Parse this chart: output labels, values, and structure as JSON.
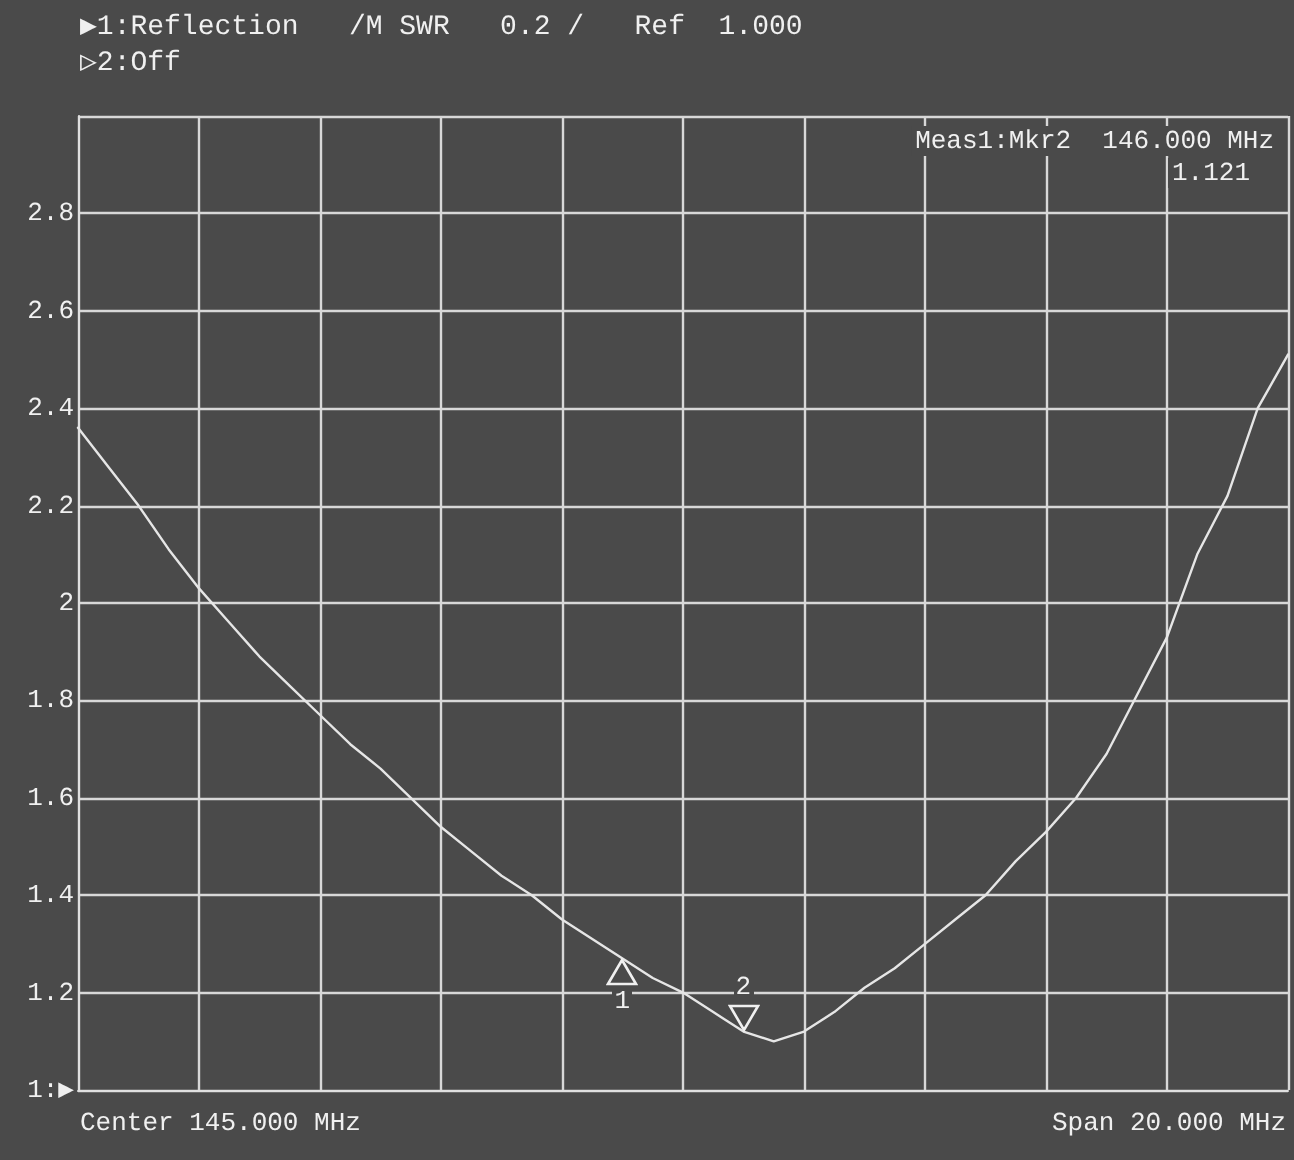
{
  "chart_data": {
    "type": "line",
    "title": "▶1:Reflection   /M SWR   0.2 /   Ref  1.000",
    "subtitle": "▷2:Off",
    "categories": [
      null,
      null,
      null,
      null,
      null,
      null,
      null,
      null,
      null,
      null,
      null,
      null,
      null,
      null,
      null,
      null,
      null,
      null,
      null,
      null,
      null,
      null,
      null,
      null,
      null,
      null,
      null,
      null,
      null,
      null,
      null,
      null,
      null,
      null,
      null,
      null,
      null,
      null,
      null,
      null,
      null
    ],
    "series": [
      {
        "color": "#e6e6e6",
        "values": [
          2.36,
          2.28,
          2.2,
          2.11,
          2.03,
          1.96,
          1.89,
          1.83,
          1.77,
          1.71,
          1.66,
          1.6,
          1.54,
          1.49,
          1.44,
          1.4,
          1.35,
          1.31,
          1.27,
          1.23,
          1.2,
          1.16,
          1.12,
          1.1,
          1.12,
          1.16,
          1.21,
          1.25,
          1.3,
          1.35,
          1.4,
          1.47,
          1.53,
          1.6,
          1.69,
          1.81,
          1.93,
          2.1,
          2.22,
          2.4,
          2.51
        ]
      }
    ],
    "ylim": [
      1,
      3
    ],
    "yticks": [
      {
        "value": 1,
        "label": "1:▶"
      },
      1.2,
      1.4,
      1.6,
      1.8,
      2,
      2.2,
      2.4,
      2.6,
      2.8,
      {
        "value": 3,
        "label": null
      }
    ],
    "grid": true,
    "marker": "none",
    "line_style": "solid",
    "annotations": [
      {
        "text": "1",
        "y": 1.27
      },
      {
        "text": "2",
        "y": 1.12
      },
      "Meas1:Mkr2  146.000 MHz",
      "1.121",
      "Center 145.000 MHz",
      "Span 20.000 MHz"
    ]
  }
}
